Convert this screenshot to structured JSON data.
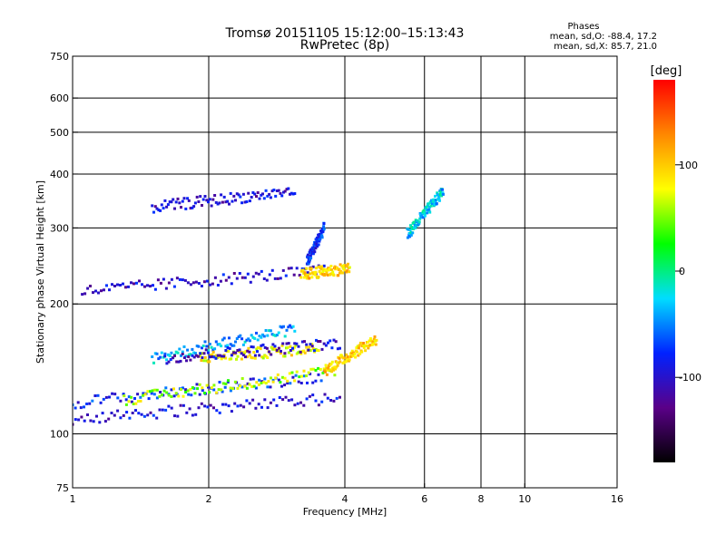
{
  "chart_data": {
    "type": "scatter",
    "title": "Tromsø 20151105 15:12:00–15:13:43",
    "subtitle": "RwPretec (8p)",
    "xlabel": "Frequency [MHz]",
    "ylabel": "Stationary phase Virtual Height [km]",
    "x_scale": "log",
    "y_scale": "log",
    "xlim": [
      1,
      16
    ],
    "ylim": [
      75,
      750
    ],
    "x_ticks": [
      1,
      2,
      4,
      6,
      8,
      10,
      16
    ],
    "y_ticks": [
      75,
      100,
      200,
      300,
      400,
      500,
      600,
      750
    ],
    "x_grid": [
      1,
      2,
      4,
      6,
      8,
      10,
      16
    ],
    "y_grid": [
      100,
      200,
      300,
      400,
      500,
      600
    ],
    "grid": true,
    "phase_stats": {
      "heading": "Phases",
      "line_o": "mean, sd,O: -88.4, 17.2",
      "line_x": "mean, sd,X:  85.7, 21.0"
    },
    "colorbar": {
      "label": "[deg]",
      "range": [
        -180,
        180
      ],
      "ticks": [
        100,
        0,
        -100
      ],
      "colors": [
        "#000000",
        "#5a0088",
        "#0022ff",
        "#00ddff",
        "#00ff00",
        "#ffff00",
        "#ff8800",
        "#ff0000"
      ]
    },
    "series": [
      {
        "trace": "o-low-100",
        "x_range": [
          1.0,
          3.9
        ],
        "y_range": [
          108,
          121
        ],
        "phase": -95
      },
      {
        "trace": "o-low-130",
        "x_range": [
          1.0,
          3.6
        ],
        "y_range": [
          118,
          136
        ],
        "phase": -80
      },
      {
        "trace": "x-low",
        "x_range": [
          1.3,
          3.8
        ],
        "y_range": [
          120,
          140
        ],
        "phase": 60
      },
      {
        "trace": "low-cluster",
        "x_range": [
          1.5,
          3.1
        ],
        "y_range": [
          150,
          175
        ],
        "phase": -40
      },
      {
        "trace": "x-mid",
        "x_range": [
          1.9,
          3.5
        ],
        "y_range": [
          150,
          158
        ],
        "phase": 80
      },
      {
        "trace": "o-mid",
        "x_range": [
          1.6,
          3.9
        ],
        "y_range": [
          150,
          162
        ],
        "phase": -100
      },
      {
        "trace": "x-mid-rise",
        "x_range": [
          3.6,
          4.7
        ],
        "y_range": [
          140,
          166
        ],
        "phase": 100
      },
      {
        "trace": "f-o",
        "x_range": [
          1.05,
          3.6
        ],
        "y_range": [
          214,
          239
        ],
        "phase": -100
      },
      {
        "trace": "f-x",
        "x_range": [
          3.2,
          4.1
        ],
        "y_range": [
          234,
          242
        ],
        "phase": 100
      },
      {
        "trace": "f-cusp",
        "x_range": [
          3.3,
          3.6
        ],
        "y_range": [
          250,
          300
        ],
        "phase": -80
      },
      {
        "trace": "f-upper",
        "x_range": [
          1.5,
          3.1
        ],
        "y_range": [
          335,
          365
        ],
        "phase": -100
      },
      {
        "trace": "spread-f",
        "x_range": [
          5.5,
          6.6
        ],
        "y_range": [
          290,
          365
        ],
        "phase": -30
      }
    ]
  }
}
